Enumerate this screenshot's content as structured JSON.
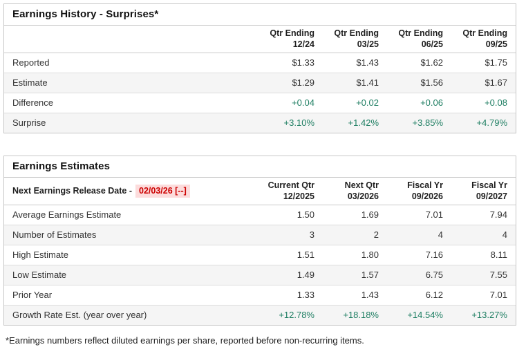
{
  "colors": {
    "positive_text": "#1e7e62",
    "alert_text": "#cc0000",
    "alert_background": "#fcdcdc",
    "stripe_row_background": "#f5f5f5",
    "border": "#c6c6c6"
  },
  "earnings_history": {
    "title": "Earnings History - Surprises*",
    "columns": [
      {
        "line1": "Qtr Ending",
        "line2": "12/24"
      },
      {
        "line1": "Qtr Ending",
        "line2": "03/25"
      },
      {
        "line1": "Qtr Ending",
        "line2": "06/25"
      },
      {
        "line1": "Qtr Ending",
        "line2": "09/25"
      }
    ],
    "rows": [
      {
        "label": "Reported",
        "values": [
          "$1.33",
          "$1.43",
          "$1.62",
          "$1.75"
        ]
      },
      {
        "label": "Estimate",
        "values": [
          "$1.29",
          "$1.41",
          "$1.56",
          "$1.67"
        ]
      },
      {
        "label": "Difference",
        "values": [
          "+0.04",
          "+0.02",
          "+0.06",
          "+0.08"
        ]
      },
      {
        "label": "Surprise",
        "values": [
          "+3.10%",
          "+1.42%",
          "+3.85%",
          "+4.79%"
        ]
      }
    ]
  },
  "earnings_estimates": {
    "title": "Earnings Estimates",
    "release_date_label": "Next Earnings Release Date -",
    "release_date_value": "02/03/26 [--]",
    "columns": [
      {
        "line1": "Current Qtr",
        "line2": "12/2025"
      },
      {
        "line1": "Next Qtr",
        "line2": "03/2026"
      },
      {
        "line1": "Fiscal Yr",
        "line2": "09/2026"
      },
      {
        "line1": "Fiscal Yr",
        "line2": "09/2027"
      }
    ],
    "rows": [
      {
        "label": "Average Earnings Estimate",
        "values": [
          "1.50",
          "1.69",
          "7.01",
          "7.94"
        ]
      },
      {
        "label": "Number of Estimates",
        "values": [
          "3",
          "2",
          "4",
          "4"
        ]
      },
      {
        "label": "High Estimate",
        "values": [
          "1.51",
          "1.80",
          "7.16",
          "8.11"
        ]
      },
      {
        "label": "Low Estimate",
        "values": [
          "1.49",
          "1.57",
          "6.75",
          "7.55"
        ]
      },
      {
        "label": "Prior Year",
        "values": [
          "1.33",
          "1.43",
          "6.12",
          "7.01"
        ]
      },
      {
        "label": "Growth Rate Est. (year over year)",
        "values": [
          "+12.78%",
          "+18.18%",
          "+14.54%",
          "+13.27%"
        ]
      }
    ]
  },
  "footnote": "*Earnings numbers reflect diluted earnings per share, reported before non-recurring items."
}
